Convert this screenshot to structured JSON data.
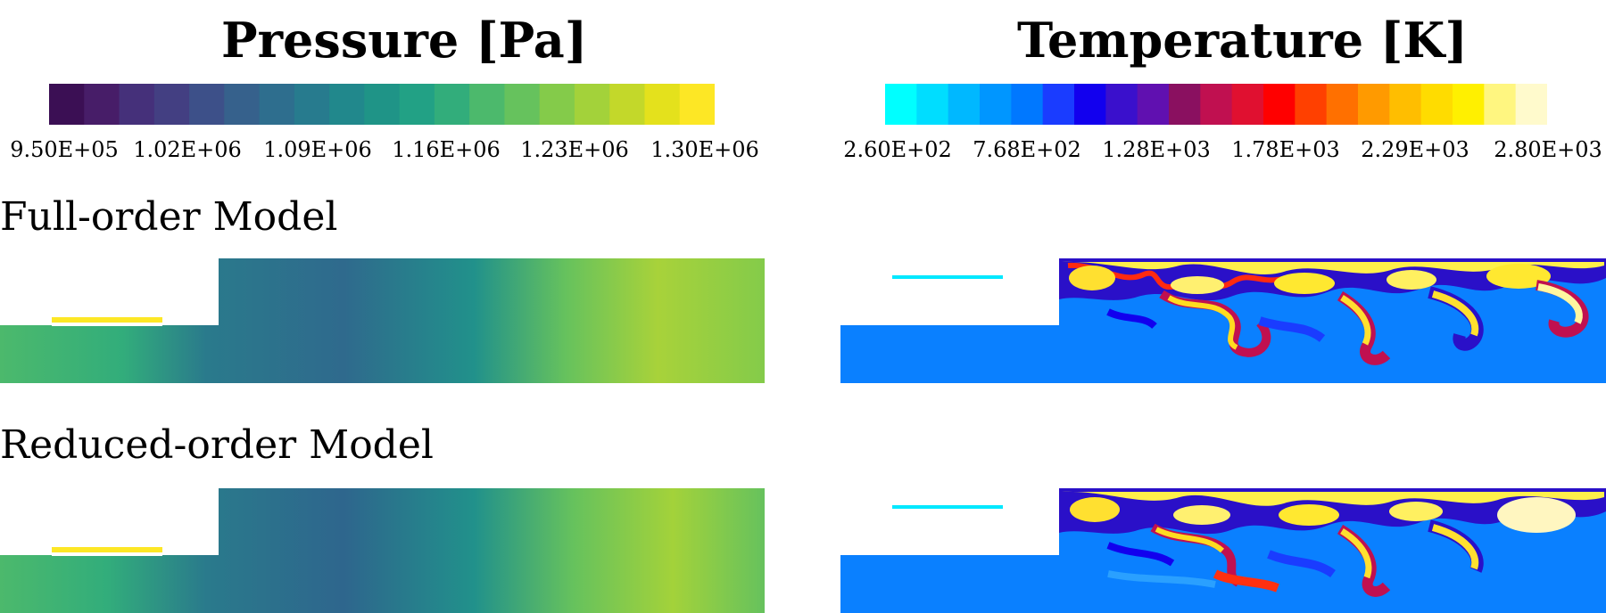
{
  "pressure": {
    "title": "Pressure [Pa]",
    "ticks": [
      "9.50E+05",
      "1.02E+06",
      "1.09E+06",
      "1.16E+06",
      "1.23E+06",
      "1.30E+06"
    ],
    "colors": [
      "#3b0f54",
      "#471d68",
      "#45307a",
      "#433f82",
      "#3d5089",
      "#36618c",
      "#2e6e8e",
      "#277b8e",
      "#21888c",
      "#1f9487",
      "#22a185",
      "#32ad7b",
      "#4cb96c",
      "#66c25d",
      "#84cb4a",
      "#a3d23a",
      "#c3d82a",
      "#e4e11c",
      "#fde725"
    ]
  },
  "temperature": {
    "title": "Temperature [K]",
    "ticks": [
      "2.60E+02",
      "7.68E+02",
      "1.28E+03",
      "1.78E+03",
      "2.29E+03",
      "2.80E+03"
    ],
    "colors": [
      "#00ffff",
      "#00ddff",
      "#00b8ff",
      "#0096ff",
      "#0078ff",
      "#1a3cff",
      "#1200ee",
      "#3a10cc",
      "#6010b0",
      "#8a1060",
      "#c01050",
      "#e01030",
      "#ff0000",
      "#ff4000",
      "#ff7000",
      "#ff9a00",
      "#ffbe00",
      "#ffdc00",
      "#fff000",
      "#fff680",
      "#fffacc"
    ]
  },
  "rows": {
    "full_label": "Full-order Model",
    "reduced_label": "Reduced-order Model"
  }
}
